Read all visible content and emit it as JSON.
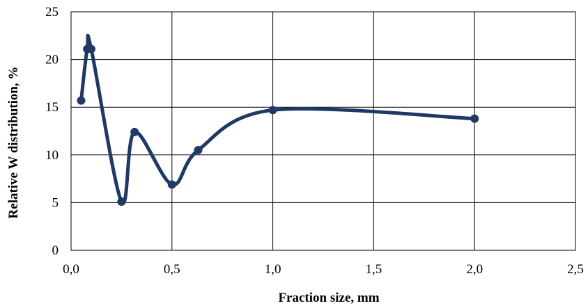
{
  "chart_data": {
    "type": "line",
    "smooth": true,
    "title": "",
    "xlabel": "Fraction size, mm",
    "ylabel": "Relative W distribution, %",
    "xlim": [
      0,
      2.5
    ],
    "ylim": [
      0,
      25
    ],
    "x_ticks": [
      "0,0",
      "0,5",
      "1,0",
      "1,5",
      "2,0",
      "2,5"
    ],
    "x_tick_values": [
      0,
      0.5,
      1.0,
      1.5,
      2.0,
      2.5
    ],
    "y_ticks": [
      "0",
      "5",
      "10",
      "15",
      "20",
      "25"
    ],
    "y_tick_values": [
      0,
      5,
      10,
      15,
      20,
      25
    ],
    "grid": true,
    "legend": "none",
    "series": [
      {
        "color": "#1f3864",
        "points": [
          {
            "x": 0.05,
            "y": 15.7
          },
          {
            "x": 0.08,
            "y": 21.1
          },
          {
            "x": 0.1,
            "y": 21.1
          },
          {
            "x": 0.25,
            "y": 5.1
          },
          {
            "x": 0.315,
            "y": 12.4
          },
          {
            "x": 0.5,
            "y": 6.9
          },
          {
            "x": 0.63,
            "y": 10.5
          },
          {
            "x": 1.0,
            "y": 14.7
          },
          {
            "x": 2.0,
            "y": 13.8
          }
        ]
      }
    ]
  }
}
